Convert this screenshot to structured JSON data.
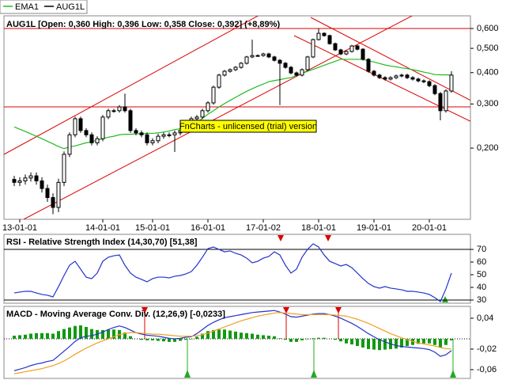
{
  "chart_data": [
    {
      "type": "candlestick",
      "title": "AUG1L [Open: 0,360  High: 0,396  Low: 0,358  Close: 0,392] (+8,89%)",
      "watermark": "FnCharts - unlicensed (trial) version",
      "categories": [
        null,
        "13-01-01",
        null,
        null,
        null,
        null,
        null,
        null,
        null,
        null,
        null,
        null,
        null,
        null,
        null,
        null,
        "14-01-01",
        null,
        null,
        null,
        null,
        null,
        null,
        null,
        null,
        "15-01-01",
        null,
        null,
        null,
        null,
        null,
        null,
        null,
        null,
        null,
        "16-01-01",
        null,
        null,
        null,
        null,
        null,
        null,
        null,
        null,
        null,
        "17-01-02",
        null,
        null,
        null,
        null,
        null,
        null,
        null,
        null,
        null,
        "18-01-01",
        null,
        null,
        null,
        null,
        null,
        null,
        null,
        null,
        null,
        "19-01-01",
        null,
        null,
        null,
        null,
        null,
        null,
        null,
        null,
        null,
        "20-01-01",
        null,
        null,
        null,
        null
      ],
      "series": [
        {
          "name": "EMA1",
          "color": "#22bb22",
          "values": [
            0.243,
            0.238,
            0.233,
            0.228,
            0.223,
            0.218,
            0.213,
            0.208,
            0.203,
            0.199,
            0.202,
            0.204,
            0.207,
            0.21,
            0.212,
            0.215,
            0.218,
            0.221,
            0.223,
            0.226,
            0.227,
            0.227,
            0.228,
            0.228,
            0.229,
            0.229,
            0.23,
            0.232,
            0.234,
            0.237,
            0.239,
            0.241,
            0.243,
            0.253,
            0.263,
            0.273,
            0.282,
            0.292,
            0.301,
            0.31,
            0.319,
            0.328,
            0.337,
            0.345,
            0.353,
            0.36,
            0.368,
            0.372,
            0.375,
            0.379,
            0.382,
            0.39,
            0.397,
            0.405,
            0.412,
            0.42,
            0.428,
            0.436,
            0.444,
            0.452,
            0.452,
            0.452,
            0.452,
            0.452,
            0.446,
            0.441,
            0.435,
            0.429,
            0.425,
            0.422,
            0.418,
            0.415,
            0.411,
            0.407,
            0.402,
            0.398,
            0.393,
            0.392,
            0.392,
            0.391
          ]
        },
        {
          "name": "AUG1L",
          "color": "#000000",
          "open": [
            0.15,
            0.146,
            0.148,
            0.152,
            0.155,
            0.148,
            0.138,
            0.127,
            0.116,
            0.146,
            0.189,
            0.226,
            0.262,
            0.235,
            0.226,
            0.21,
            0.218,
            0.266,
            0.282,
            0.282,
            0.292,
            0.282,
            0.235,
            0.23,
            0.226,
            0.21,
            0.214,
            0.223,
            0.226,
            0.226,
            0.23,
            0.235,
            0.247,
            0.262,
            0.266,
            0.282,
            0.303,
            0.35,
            0.391,
            0.405,
            0.411,
            0.42,
            0.436,
            0.462,
            0.468,
            0.468,
            0.475,
            0.462,
            0.448,
            0.436,
            0.42,
            0.399,
            0.391,
            0.411,
            0.462,
            0.542,
            0.574,
            0.562,
            0.522,
            0.493,
            0.475,
            0.486,
            0.511,
            0.496,
            0.452,
            0.405,
            0.391,
            0.382,
            0.377,
            0.382,
            0.388,
            0.391,
            0.382,
            0.377,
            0.371,
            0.368,
            0.355,
            0.33,
            0.282,
            0.338
          ],
          "high": [
            0.155,
            0.153,
            0.157,
            0.16,
            0.16,
            0.153,
            0.143,
            0.132,
            0.151,
            0.194,
            0.231,
            0.267,
            0.267,
            0.24,
            0.231,
            0.223,
            0.271,
            0.287,
            0.287,
            0.297,
            0.33,
            0.287,
            0.24,
            0.235,
            0.231,
            0.219,
            0.228,
            0.231,
            0.231,
            0.235,
            0.24,
            0.252,
            0.267,
            0.271,
            0.287,
            0.308,
            0.355,
            0.396,
            0.41,
            0.416,
            0.425,
            0.441,
            0.467,
            0.542,
            0.473,
            0.48,
            0.48,
            0.467,
            0.453,
            0.441,
            0.425,
            0.404,
            0.416,
            0.467,
            0.547,
            0.6,
            0.579,
            0.567,
            0.527,
            0.498,
            0.491,
            0.516,
            0.516,
            0.501,
            0.457,
            0.41,
            0.396,
            0.387,
            0.387,
            0.393,
            0.396,
            0.396,
            0.387,
            0.382,
            0.376,
            0.373,
            0.36,
            0.335,
            0.343,
            0.405
          ],
          "low": [
            0.141,
            0.141,
            0.143,
            0.147,
            0.143,
            0.133,
            0.122,
            0.109,
            0.111,
            0.141,
            0.184,
            0.221,
            0.23,
            0.221,
            0.205,
            0.205,
            0.213,
            0.261,
            0.277,
            0.277,
            0.277,
            0.23,
            0.225,
            0.221,
            0.205,
            0.205,
            0.209,
            0.218,
            0.221,
            0.193,
            0.225,
            0.23,
            0.242,
            0.257,
            0.261,
            0.277,
            0.298,
            0.345,
            0.386,
            0.4,
            0.406,
            0.415,
            0.431,
            0.457,
            0.463,
            0.463,
            0.457,
            0.443,
            0.297,
            0.415,
            0.394,
            0.386,
            0.386,
            0.406,
            0.457,
            0.537,
            0.557,
            0.517,
            0.488,
            0.47,
            0.47,
            0.481,
            0.491,
            0.447,
            0.4,
            0.386,
            0.377,
            0.372,
            0.372,
            0.377,
            0.383,
            0.377,
            0.372,
            0.366,
            0.363,
            0.35,
            0.325,
            0.258,
            0.277,
            0.333
          ],
          "close": [
            0.146,
            0.148,
            0.152,
            0.155,
            0.148,
            0.138,
            0.127,
            0.116,
            0.146,
            0.189,
            0.226,
            0.262,
            0.235,
            0.226,
            0.21,
            0.218,
            0.266,
            0.282,
            0.282,
            0.292,
            0.282,
            0.235,
            0.23,
            0.226,
            0.21,
            0.214,
            0.223,
            0.226,
            0.226,
            0.23,
            0.235,
            0.247,
            0.262,
            0.266,
            0.282,
            0.303,
            0.35,
            0.391,
            0.405,
            0.411,
            0.42,
            0.436,
            0.462,
            0.468,
            0.468,
            0.475,
            0.462,
            0.448,
            0.436,
            0.42,
            0.399,
            0.391,
            0.411,
            0.462,
            0.542,
            0.574,
            0.562,
            0.522,
            0.493,
            0.475,
            0.486,
            0.511,
            0.496,
            0.452,
            0.405,
            0.391,
            0.382,
            0.377,
            0.382,
            0.388,
            0.391,
            0.382,
            0.377,
            0.371,
            0.368,
            0.355,
            0.33,
            0.282,
            0.338,
            0.391
          ]
        }
      ],
      "log_scale": true,
      "ylim": [
        0.104,
        0.674
      ],
      "yticks": [
        {
          "value": 0.6,
          "label": "0,600"
        },
        {
          "value": 0.5,
          "label": "0,500"
        },
        {
          "value": 0.4,
          "label": "0,400"
        },
        {
          "value": 0.3,
          "label": "0,300"
        },
        {
          "value": 0.2,
          "label": "0,200"
        }
      ],
      "reference_lines": [
        0.6,
        0.292
      ],
      "reference_color": "#dd0000"
    },
    {
      "type": "line",
      "title": "RSI - Relative Strength Index (14,30,70) [51,38]",
      "color": "#2233cc",
      "values": [
        35.6,
        36.3,
        36.9,
        36.9,
        35.6,
        34.4,
        33.8,
        32.5,
        40.6,
        49.4,
        57.5,
        60.6,
        54.4,
        48.1,
        46.9,
        51.3,
        60.6,
        63.8,
        65.0,
        65.6,
        57.5,
        51.3,
        48.1,
        46.3,
        44.4,
        46.9,
        48.1,
        48.1,
        47.5,
        48.8,
        49.4,
        50.6,
        52.5,
        57.5,
        63.8,
        70.6,
        71.9,
        70.0,
        68.1,
        68.8,
        66.9,
        65.6,
        63.1,
        59.4,
        60.6,
        63.1,
        64.4,
        68.1,
        65.6,
        57.5,
        51.3,
        54.4,
        63.8,
        70.0,
        74.4,
        71.9,
        65.6,
        60.6,
        58.8,
        56.9,
        58.1,
        55.6,
        51.3,
        46.9,
        43.1,
        40.6,
        39.4,
        40.6,
        39.4,
        38.8,
        38.1,
        36.9,
        36.9,
        36.3,
        35.6,
        34.4,
        31.9,
        28.8,
        38.8,
        51.3
      ],
      "ylim": [
        27.5,
        81.9
      ],
      "yticks": [
        70,
        60,
        50,
        40,
        30
      ],
      "reference_lines": [
        70,
        30
      ],
      "reference_color": "#000000"
    },
    {
      "type": "macd",
      "title": "MACD - Moving Average Conv. Div. (12,26,9) [-0,0233]",
      "bars": {
        "color": "#119911",
        "values": [
          0.006,
          0.007,
          0.008,
          0.01,
          0.011,
          0.011,
          0.011,
          0.01,
          0.015,
          0.019,
          0.022,
          0.025,
          0.026,
          0.023,
          0.019,
          0.017,
          0.017,
          0.018,
          0.018,
          0.017,
          0.012,
          0.005,
          0,
          -0.002,
          -0.003,
          -0.003,
          -0.004,
          -0.005,
          -0.006,
          -0.006,
          -0.004,
          -0.002,
          -0.001,
          0.004,
          0.01,
          0.015,
          0.017,
          0.018,
          0.018,
          0.016,
          0.014,
          0.012,
          0.011,
          0.01,
          0.008,
          0.007,
          0.006,
          0.005,
          0.001,
          -0.002,
          -0.006,
          -0.006,
          -0.003,
          -0.001,
          0.001,
          0.002,
          0.002,
          0,
          -0.002,
          -0.005,
          -0.009,
          -0.011,
          -0.014,
          -0.017,
          -0.02,
          -0.021,
          -0.022,
          -0.021,
          -0.02,
          -0.019,
          -0.017,
          -0.014,
          -0.012,
          -0.01,
          -0.009,
          -0.009,
          -0.012,
          -0.017,
          -0.012,
          -0.003
        ]
      },
      "lines": [
        {
          "color": "#2233cc",
          "values": [
            -0.062,
            -0.059,
            -0.056,
            -0.052,
            -0.049,
            -0.047,
            -0.044,
            -0.042,
            -0.033,
            -0.024,
            -0.015,
            -0.005,
            0.002,
            0.005,
            0.006,
            0.009,
            0.013,
            0.018,
            0.022,
            0.025,
            0.022,
            0.017,
            0.012,
            0.009,
            0.007,
            0.006,
            0.005,
            0.003,
            0.001,
            0,
            0.001,
            0.003,
            0.004,
            0.01,
            0.018,
            0.026,
            0.032,
            0.037,
            0.041,
            0.043,
            0.045,
            0.047,
            0.049,
            0.051,
            0.052,
            0.053,
            0.054,
            0.055,
            0.052,
            0.048,
            0.043,
            0.042,
            0.044,
            0.046,
            0.048,
            0.049,
            0.049,
            0.047,
            0.044,
            0.04,
            0.035,
            0.03,
            0.024,
            0.017,
            0.01,
            0.004,
            -0.002,
            -0.006,
            -0.01,
            -0.013,
            -0.015,
            -0.016,
            -0.017,
            -0.018,
            -0.019,
            -0.021,
            -0.026,
            -0.034,
            -0.031,
            -0.023
          ]
        },
        {
          "color": "#f0a020",
          "values": [
            -0.068,
            -0.066,
            -0.064,
            -0.062,
            -0.06,
            -0.058,
            -0.055,
            -0.052,
            -0.048,
            -0.043,
            -0.037,
            -0.03,
            -0.024,
            -0.018,
            -0.013,
            -0.008,
            -0.004,
            0,
            0.004,
            0.008,
            0.01,
            0.012,
            0.012,
            0.011,
            0.01,
            0.009,
            0.009,
            0.008,
            0.007,
            0.006,
            0.005,
            0.005,
            0.005,
            0.006,
            0.008,
            0.011,
            0.015,
            0.019,
            0.023,
            0.027,
            0.031,
            0.035,
            0.038,
            0.041,
            0.044,
            0.046,
            0.048,
            0.05,
            0.051,
            0.05,
            0.049,
            0.048,
            0.047,
            0.047,
            0.047,
            0.047,
            0.047,
            0.047,
            0.046,
            0.045,
            0.044,
            0.041,
            0.038,
            0.034,
            0.03,
            0.025,
            0.02,
            0.015,
            0.01,
            0.006,
            0.002,
            -0.002,
            -0.005,
            -0.008,
            -0.01,
            -0.012,
            -0.014,
            -0.017,
            -0.019,
            -0.02
          ]
        }
      ],
      "ylim": [
        -0.077,
        0.063
      ],
      "yticks": [
        {
          "value": 0.04,
          "label": "0,04"
        },
        {
          "value": -0.02,
          "label": "-0,02"
        },
        {
          "value": -0.06,
          "label": "-0,06"
        }
      ]
    }
  ]
}
